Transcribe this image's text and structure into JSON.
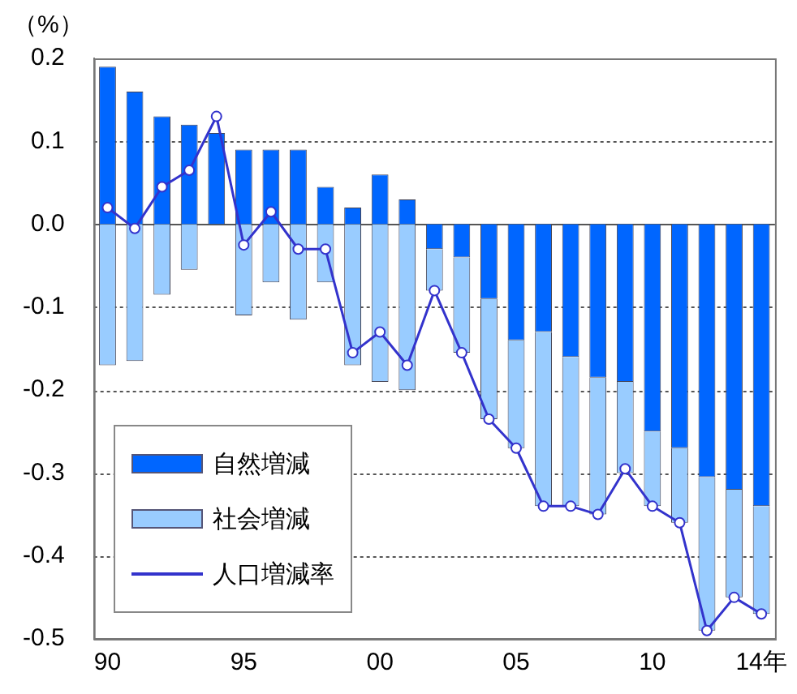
{
  "chart_data": {
    "type": "bar",
    "stacked": true,
    "ylabel": "（%）",
    "categories": [
      "90",
      null,
      null,
      null,
      null,
      "95",
      null,
      null,
      null,
      null,
      "00",
      null,
      null,
      null,
      null,
      "05",
      null,
      null,
      null,
      null,
      "10",
      null,
      null,
      null,
      "14年"
    ],
    "series": [
      {
        "name": "自然増減",
        "color": "#0066ff",
        "values": [
          0.19,
          0.16,
          0.13,
          0.12,
          0.11,
          0.09,
          0.09,
          0.09,
          0.045,
          0.02,
          0.06,
          0.03,
          -0.03,
          -0.04,
          -0.09,
          -0.14,
          -0.13,
          -0.16,
          -0.185,
          -0.19,
          -0.25,
          -0.27,
          -0.305,
          -0.32,
          -0.34
        ]
      },
      {
        "name": "社会増減",
        "color": "#99ccff",
        "values": [
          -0.17,
          -0.165,
          -0.085,
          -0.055,
          null,
          -0.11,
          -0.07,
          -0.115,
          -0.07,
          -0.17,
          -0.19,
          -0.2,
          -0.05,
          -0.115,
          -0.145,
          -0.13,
          -0.21,
          -0.18,
          -0.165,
          -0.11,
          -0.09,
          -0.09,
          -0.185,
          -0.13,
          -0.13
        ]
      },
      {
        "name": "人口増減率",
        "type": "line",
        "color": "#3333cc",
        "marker": "circle",
        "values": [
          0.02,
          -0.005,
          0.045,
          0.065,
          0.13,
          -0.025,
          0.015,
          -0.03,
          -0.03,
          -0.155,
          -0.13,
          -0.17,
          -0.08,
          -0.155,
          -0.235,
          -0.27,
          -0.34,
          -0.34,
          -0.35,
          -0.295,
          -0.34,
          -0.36,
          -0.49,
          -0.45,
          -0.47
        ]
      }
    ],
    "ylim": [
      -0.5,
      0.2
    ],
    "yticks": [
      {
        "value": -0.5,
        "label": "-0.5"
      },
      {
        "value": -0.4,
        "label": "-0.4"
      },
      {
        "value": -0.3,
        "label": "-0.3"
      },
      {
        "value": -0.2,
        "label": "-0.2"
      },
      {
        "value": -0.1,
        "label": "-0.1"
      },
      {
        "value": 0,
        "label": "0.0"
      },
      {
        "value": 0.1,
        "label": "0.1"
      },
      {
        "value": 0.2,
        "label": "0.2"
      }
    ],
    "grid": "y",
    "legend": "bottom left"
  }
}
